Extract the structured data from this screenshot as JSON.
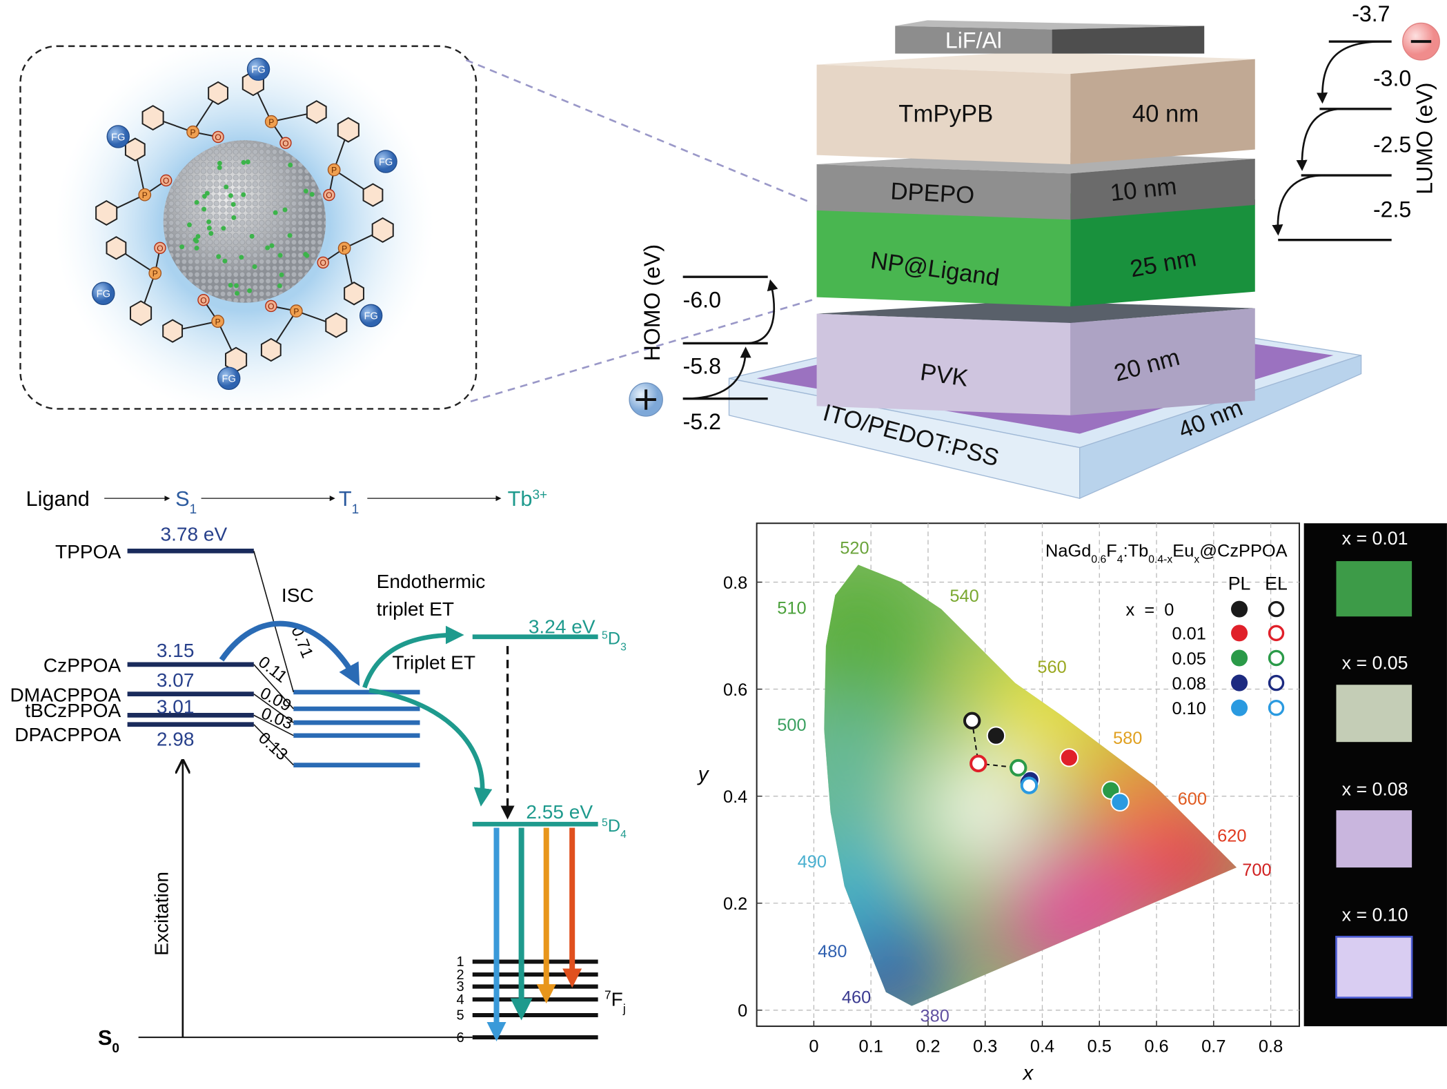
{
  "nanoparticle": {
    "functional_group": "FG",
    "phosphorus": "P",
    "oxygen": "O"
  },
  "device": {
    "layers": [
      {
        "name": "LiF/Al"
      },
      {
        "name": "TmPyPB",
        "thickness": "40 nm"
      },
      {
        "name": "DPEPO",
        "thickness": "10 nm"
      },
      {
        "name": "NP@Ligand",
        "thickness": "25 nm"
      },
      {
        "name": "PVK",
        "thickness": "20 nm"
      },
      {
        "name": "ITO/PEDOT:PSS",
        "thickness": "40 nm"
      }
    ],
    "homo": {
      "label": "HOMO (eV)",
      "levels": [
        "-6.0",
        "-5.8",
        "-5.2"
      ]
    },
    "lumo": {
      "label": "LUMO (eV)",
      "levels": [
        "-3.7",
        "-3.0",
        "-2.5",
        "-2.5"
      ]
    }
  },
  "energy_diagram": {
    "header": {
      "ligand": "Ligand",
      "s1": [
        {
          "text": "S"
        },
        {
          "sub": "1"
        }
      ],
      "t1": [
        {
          "text": "T"
        },
        {
          "sub": "1"
        }
      ],
      "tb": [
        {
          "text": "Tb"
        },
        {
          "sup": "3+"
        }
      ]
    },
    "ligands": [
      {
        "name": "TPPOA",
        "energy": "3.78 eV",
        "gap": "0.71"
      },
      {
        "name": "CzPPOA",
        "energy": "3.15",
        "gap": "0.11"
      },
      {
        "name": "DMACPPOA",
        "energy": "3.07",
        "gap": "0.09"
      },
      {
        "name": "tBCzPPOA",
        "energy": "3.01",
        "gap": "0.03"
      },
      {
        "name": "DPACPPOA",
        "energy": "2.98",
        "gap": "0.13"
      }
    ],
    "isc": "ISC",
    "endothermic": [
      "Endothermic",
      "triplet ET"
    ],
    "triplet_et": "Triplet ET",
    "d3": {
      "energy": "3.24 eV",
      "term": [
        {
          "sup": "5"
        },
        {
          "text": "D"
        },
        {
          "sub": "3"
        }
      ]
    },
    "d4": {
      "energy": "2.55 eV",
      "term": [
        {
          "sup": "5"
        },
        {
          "text": "D"
        },
        {
          "sub": "4"
        }
      ]
    },
    "f_levels": [
      "1",
      "2",
      "3",
      "4",
      "5",
      "6"
    ],
    "f_term": [
      {
        "sup": "7"
      },
      {
        "text": "F"
      },
      {
        "sub": "j"
      }
    ],
    "excitation": "Excitation",
    "s0": [
      {
        "text": "S"
      },
      {
        "sub": "0"
      }
    ]
  },
  "cie_chart": {
    "type": "scatter",
    "title": [
      {
        "text": "NaGd"
      },
      {
        "sub": "0.6"
      },
      {
        "text": "F"
      },
      {
        "sub": "4"
      },
      {
        "text": ":Tb"
      },
      {
        "sub": "0.4-x"
      },
      {
        "text": "Eu"
      },
      {
        "sub": "x"
      },
      {
        "text": "@CzPPOA"
      }
    ],
    "x_label": "x",
    "y_label": "y",
    "row_labels": [
      "x  =  0",
      "0.01",
      "0.05",
      "0.08",
      "0.10"
    ],
    "point_colors": [
      "#1a1a1a",
      "#e0202a",
      "#2a9a48",
      "#1c2a80",
      "#2a9ae0"
    ],
    "series": [
      {
        "name": "PL",
        "marker": "filled",
        "x": [
          0.319,
          0.447,
          0.52,
          0.379,
          0.536
        ],
        "values": [
          0.513,
          0.472,
          0.411,
          0.43,
          0.389
        ]
      },
      {
        "name": "EL",
        "marker": "open",
        "x": [
          0.277,
          0.288,
          0.358,
          0.377,
          0.377
        ],
        "values": [
          0.541,
          0.461,
          0.453,
          0.425,
          0.42
        ]
      }
    ],
    "xlim": [
      -0.1,
      0.85
    ],
    "ylim": [
      -0.03,
      0.91
    ],
    "xticks": [
      0,
      0.1,
      0.2,
      0.3,
      0.4,
      0.5,
      0.6,
      0.7,
      0.8
    ],
    "yticks": [
      0,
      0.2,
      0.4,
      0.6,
      0.8
    ],
    "grid": true,
    "wavelength_labels": [
      "520",
      "540",
      "510",
      "560",
      "500",
      "580",
      "600",
      "620",
      "700",
      "490",
      "480",
      "460",
      "380"
    ]
  },
  "photos": {
    "labels": [
      "x = 0.01",
      "x = 0.05",
      "x = 0.08",
      "x = 0.10"
    ]
  }
}
